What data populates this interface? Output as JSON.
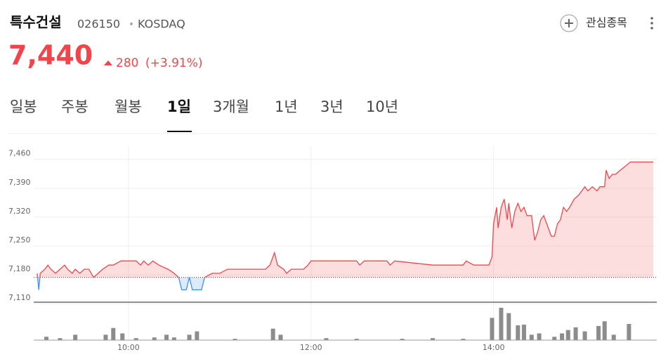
{
  "header": {
    "name": "특수건설",
    "code": "026150",
    "market": "KOSDAQ",
    "price": "7,440",
    "change": "280",
    "change_pct": "(+3.91%)",
    "watchlist": "관심종목"
  },
  "tabs": {
    "items": [
      "일봉",
      "주봉",
      "월봉",
      "1일",
      "3개월",
      "1년",
      "3년",
      "10년"
    ],
    "active": 3
  },
  "chart_data": {
    "type": "line",
    "up_color": "#f0464b",
    "down_color": "#3d8ff0",
    "prev_close": 7160,
    "x": [
      "09:00",
      "09:01",
      "09:02",
      "09:05",
      "09:07",
      "09:09",
      "09:12",
      "09:15",
      "09:18",
      "09:20",
      "09:23",
      "09:25",
      "09:28",
      "09:31",
      "09:34",
      "09:37",
      "09:40",
      "09:43",
      "09:47",
      "09:50",
      "09:55",
      "10:05",
      "10:08",
      "10:10",
      "10:13",
      "10:16",
      "10:20",
      "10:26",
      "10:30",
      "10:33",
      "10:35",
      "10:38",
      "10:40",
      "10:42",
      "10:48",
      "10:50",
      "10:55",
      "11:00",
      "11:05",
      "11:30",
      "11:33",
      "11:36",
      "11:38",
      "11:42",
      "11:44",
      "11:47",
      "11:55",
      "11:58",
      "12:00",
      "12:30",
      "12:32",
      "12:35",
      "12:50",
      "12:52",
      "12:55",
      "13:20",
      "13:40",
      "13:42",
      "13:47",
      "13:57",
      "13:59",
      "14:00",
      "14:02",
      "14:03",
      "14:05",
      "14:07",
      "14:09",
      "14:10",
      "14:12",
      "14:14",
      "14:16",
      "14:18",
      "14:20",
      "14:22",
      "14:25",
      "14:27",
      "14:29",
      "14:31",
      "14:33",
      "14:35",
      "14:38",
      "14:40",
      "14:42",
      "14:44",
      "14:46",
      "14:48",
      "14:50",
      "14:53",
      "14:56",
      "15:00",
      "15:02",
      "15:05",
      "15:08",
      "15:10",
      "15:13",
      "15:14",
      "15:16",
      "15:18",
      "15:20",
      "15:30",
      "15:45"
    ],
    "values": [
      7170,
      7130,
      7170,
      7180,
      7190,
      7180,
      7170,
      7180,
      7190,
      7180,
      7170,
      7180,
      7170,
      7180,
      7180,
      7160,
      7170,
      7180,
      7190,
      7190,
      7200,
      7200,
      7190,
      7200,
      7190,
      7200,
      7190,
      7180,
      7170,
      7160,
      7130,
      7130,
      7160,
      7130,
      7130,
      7160,
      7170,
      7170,
      7180,
      7180,
      7190,
      7220,
      7190,
      7180,
      7170,
      7180,
      7180,
      7190,
      7200,
      7200,
      7190,
      7200,
      7200,
      7190,
      7200,
      7190,
      7190,
      7200,
      7190,
      7190,
      7210,
      7290,
      7330,
      7280,
      7330,
      7350,
      7300,
      7340,
      7280,
      7320,
      7340,
      7320,
      7330,
      7310,
      7310,
      7250,
      7270,
      7300,
      7310,
      7290,
      7260,
      7260,
      7290,
      7300,
      7330,
      7320,
      7330,
      7350,
      7360,
      7380,
      7370,
      7380,
      7370,
      7380,
      7380,
      7420,
      7400,
      7410,
      7410,
      7440,
      7440
    ],
    "xlim": [
      "09:00",
      "15:45"
    ],
    "xticks": [
      "10:00",
      "12:00",
      "14:00"
    ],
    "ylim": [
      7100,
      7480
    ],
    "yticks": [
      {
        "value": 7460,
        "label": "7,460"
      },
      {
        "value": 7390,
        "label": "7,390"
      },
      {
        "value": 7320,
        "label": "7,320"
      },
      {
        "value": 7250,
        "label": "7,250"
      },
      {
        "value": 7180,
        "label": "7,180"
      },
      {
        "value": 7110,
        "label": "7,110"
      }
    ],
    "grid": true,
    "volume": {
      "color": "#8c8c8c",
      "ylim": [
        0,
        50
      ],
      "x": [
        "09:06",
        "09:15",
        "09:25",
        "09:45",
        "09:50",
        "09:56",
        "10:05",
        "10:17",
        "10:25",
        "10:30",
        "10:40",
        "10:45",
        "11:10",
        "11:35",
        "11:40",
        "12:10",
        "12:30",
        "13:00",
        "13:20",
        "13:40",
        "13:59",
        "14:05",
        "14:10",
        "14:16",
        "14:20",
        "14:25",
        "14:30",
        "14:40",
        "14:45",
        "14:49",
        "14:54",
        "15:00",
        "15:09",
        "15:13",
        "15:19",
        "15:29"
      ],
      "values": [
        5,
        3,
        8,
        8,
        18,
        10,
        3,
        4,
        8,
        4,
        8,
        13,
        2,
        17,
        8,
        3,
        2,
        2,
        3,
        2,
        33,
        48,
        40,
        22,
        23,
        8,
        10,
        5,
        10,
        15,
        19,
        13,
        21,
        28,
        8,
        24
      ]
    }
  }
}
